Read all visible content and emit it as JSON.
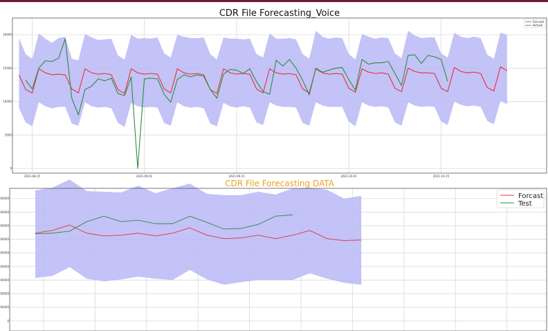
{
  "chart_data": [
    {
      "type": "line",
      "title": "CDR File Forecasting_Voice",
      "x_tick_labels": [
        "2021-08-15",
        "2021-09-01",
        "2021-09-15",
        "2021-10-01",
        "2021-10-15"
      ],
      "x_tick_index": [
        2,
        19,
        33,
        50,
        64
      ],
      "x_range": [
        -1,
        80
      ],
      "y_tick_labels": [
        "20000",
        "15000",
        "10000",
        "5000",
        "0"
      ],
      "y_tick_values": [
        20000,
        15000,
        10000,
        5000,
        0
      ],
      "ylim": [
        -700,
        22500
      ],
      "grid": true,
      "legend_position": "upper-right",
      "series": [
        {
          "name": "Forcast",
          "color": "#e8303a",
          "values": [
            14000,
            11800,
            11300,
            14900,
            14300,
            14000,
            14100,
            14000,
            11900,
            11300,
            14900,
            14300,
            14100,
            14200,
            14000,
            11800,
            11200,
            14900,
            14300,
            14100,
            14200,
            14100,
            11900,
            11300,
            14900,
            14300,
            14100,
            14200,
            14000,
            11800,
            11200,
            14900,
            14300,
            14100,
            14200,
            14100,
            11900,
            11300,
            14900,
            14300,
            14100,
            14200,
            14000,
            11900,
            11300,
            14900,
            14300,
            14100,
            14200,
            14100,
            12000,
            11400,
            14900,
            14400,
            14200,
            14300,
            14100,
            12000,
            11500,
            15000,
            14500,
            14300,
            14300,
            14200,
            12000,
            11500,
            15100,
            14500,
            14300,
            14400,
            14200,
            12100,
            11600,
            15200,
            14600
          ]
        },
        {
          "name": "Actual",
          "color": "#2e8b3e",
          "values": [
            null,
            13200,
            11900,
            15000,
            16100,
            16000,
            16500,
            19400,
            10500,
            8000,
            11800,
            12300,
            13400,
            13100,
            13500,
            11200,
            10900,
            13700,
            0,
            13400,
            13500,
            13400,
            11100,
            9900,
            13300,
            14000,
            13700,
            14000,
            13800,
            11800,
            10500,
            14100,
            14800,
            14700,
            14200,
            14900,
            13000,
            11500,
            11100,
            16200,
            15300,
            16300,
            15000,
            13200,
            11000,
            15000,
            14400,
            14700,
            15000,
            15100,
            13300,
            11700,
            16300,
            15600,
            15800,
            15800,
            16000,
            14200,
            12400,
            16900,
            17000,
            15700,
            16900,
            16700,
            16300,
            13000
          ]
        }
      ],
      "upper_band": [
        19500,
        17100,
        16400,
        20200,
        19400,
        18800,
        19500,
        19700,
        16400,
        16200,
        20100,
        19600,
        19200,
        19300,
        19400,
        16900,
        16300,
        20000,
        19400,
        19500,
        19400,
        19600,
        17200,
        16600,
        20000,
        19700,
        19500,
        19500,
        19600,
        17100,
        16300,
        19600,
        19400,
        19400,
        19300,
        19400,
        17100,
        16600,
        20200,
        19400,
        19400,
        19500,
        19300,
        17100,
        16400,
        20600,
        19700,
        19400,
        19600,
        19500,
        17100,
        16300,
        20100,
        19700,
        19400,
        19600,
        19500,
        17200,
        16500,
        20600,
        19900,
        19500,
        19600,
        19600,
        17200,
        16600,
        20300,
        19700,
        19500,
        19700,
        19500,
        17000,
        16400,
        20300,
        20000
      ],
      "lower_band": [
        9000,
        6900,
        6300,
        9900,
        9300,
        9000,
        9200,
        9200,
        6700,
        6400,
        9900,
        9300,
        9100,
        9200,
        9000,
        6800,
        6200,
        9800,
        9300,
        9100,
        9200,
        9100,
        6800,
        6400,
        9900,
        9300,
        9100,
        9200,
        9000,
        6700,
        6300,
        9800,
        9300,
        9100,
        9300,
        9100,
        6900,
        6500,
        9900,
        9400,
        9200,
        9200,
        9100,
        6800,
        6400,
        9900,
        9400,
        9200,
        9200,
        9200,
        7000,
        6300,
        9900,
        9400,
        9200,
        9300,
        9100,
        6900,
        6400,
        9900,
        9400,
        9200,
        9300,
        9200,
        7000,
        6500,
        10000,
        9500,
        9300,
        9400,
        9200,
        7100,
        6600,
        10100,
        9600
      ],
      "band_color": "#b8b8f6"
    },
    {
      "type": "line",
      "title": "CDR File Forecasting DATA",
      "x_count": 30,
      "y_tick_values": [
        0,
        200000,
        400000,
        600000,
        800000,
        1000000,
        1200000,
        1400000,
        1600000,
        1800000
      ],
      "y_tick_labels": [
        "0",
        "200000",
        "400000",
        "600000",
        "800000",
        "1000000",
        "1200000",
        "1400000",
        "1600000",
        "1800000"
      ],
      "ylim": [
        -150000,
        1950000
      ],
      "grid": true,
      "legend_position": "upper-right",
      "series": [
        {
          "name": "Forcast",
          "color": "#e8303a",
          "values": [
            1290000,
            1330000,
            1410000,
            1290000,
            1250000,
            1260000,
            1290000,
            1250000,
            1290000,
            1370000,
            1260000,
            1210000,
            1220000,
            1260000,
            1210000,
            1260000,
            1330000,
            1210000,
            1180000,
            1190000
          ]
        },
        {
          "name": "Test",
          "color": "#2e8b3e",
          "values": [
            1280000,
            1290000,
            1320000,
            1460000,
            1540000,
            1460000,
            1480000,
            1430000,
            1430000,
            1540000,
            1450000,
            1350000,
            1360000,
            1420000,
            1540000,
            1560000
          ]
        }
      ],
      "upper_band": [
        1920000,
        1960000,
        2080000,
        1910000,
        1900000,
        1890000,
        1990000,
        1880000,
        1950000,
        2020000,
        1870000,
        1850000,
        1850000,
        1900000,
        1860000,
        1950000,
        1960000,
        1930000,
        1800000,
        1840000
      ],
      "lower_band": [
        630000,
        660000,
        790000,
        620000,
        580000,
        610000,
        650000,
        620000,
        600000,
        750000,
        610000,
        530000,
        570000,
        600000,
        600000,
        600000,
        700000,
        620000,
        560000,
        530000
      ]
    }
  ]
}
